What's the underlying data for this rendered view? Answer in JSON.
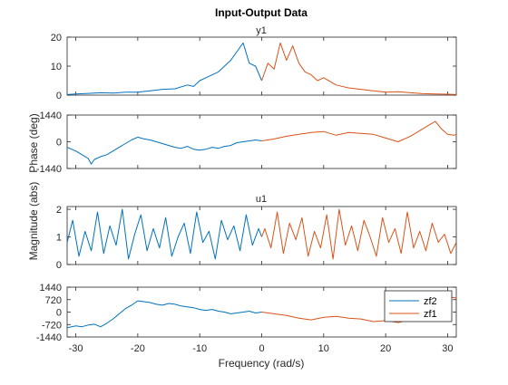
{
  "figure": {
    "title": "Input-Output Data",
    "xlabel": "Frequency  (rad/s)",
    "magnitude_label": "Magnitude (abs)",
    "phase_label": "Phase  (deg)",
    "xlim": [
      -31.4,
      31.4
    ],
    "xticks": [
      -30,
      -20,
      -10,
      0,
      10,
      20,
      30
    ],
    "xtick_labels": [
      "-30",
      "-20",
      "-10",
      "0",
      "10",
      "20",
      "30"
    ]
  },
  "chart_data": [
    {
      "type": "line",
      "channel": "y1",
      "quantity": "magnitude",
      "title": "y1",
      "ylim": [
        0,
        20
      ],
      "yticks": [
        0,
        10,
        20
      ],
      "ytick_labels": [
        "0",
        "10",
        "20"
      ],
      "series": [
        {
          "name": "zf2",
          "x": [
            -31.4,
            -30,
            -28,
            -26,
            -24,
            -22,
            -20,
            -18,
            -16,
            -14,
            -12,
            -11,
            -10,
            -9,
            -8,
            -7,
            -6,
            -5,
            -4,
            -3,
            -2,
            -1,
            0
          ],
          "values": [
            0.2,
            0.4,
            0.6,
            0.8,
            0.7,
            1.0,
            1.0,
            1.5,
            2.0,
            2.2,
            3.5,
            3.0,
            5.0,
            6.0,
            7.0,
            8.0,
            10.0,
            12.0,
            15.0,
            18.0,
            11.0,
            10.0,
            5.0
          ]
        },
        {
          "name": "zf1",
          "x": [
            0,
            1,
            2,
            3,
            4,
            5,
            6,
            7,
            8,
            9,
            10,
            12,
            14,
            16,
            18,
            20,
            22,
            24,
            26,
            28,
            30,
            31.4
          ],
          "values": [
            5.0,
            11.0,
            9.0,
            18.0,
            12.0,
            17.0,
            11.0,
            8.0,
            7.0,
            5.0,
            6.0,
            3.5,
            2.5,
            2.0,
            1.5,
            1.0,
            1.2,
            0.8,
            0.5,
            0.4,
            0.3,
            0.2
          ]
        }
      ]
    },
    {
      "type": "line",
      "channel": "y1",
      "quantity": "phase",
      "ylim": [
        -1440,
        1440
      ],
      "yticks": [
        -1440,
        0,
        1440
      ],
      "ytick_labels": [
        "-1440",
        "0",
        "1440"
      ],
      "series": [
        {
          "name": "zf2",
          "x": [
            -31.4,
            -30,
            -29,
            -28,
            -27.5,
            -27,
            -26,
            -25,
            -24,
            -23,
            -22,
            -21,
            -20,
            -19,
            -18,
            -17,
            -16,
            -15,
            -14,
            -13,
            -12,
            -11,
            -10,
            -9,
            -8,
            -7,
            -6,
            -5,
            -4,
            -3,
            -2,
            -1,
            0
          ],
          "values": [
            -300,
            -500,
            -700,
            -900,
            -1200,
            -950,
            -800,
            -700,
            -500,
            -300,
            -100,
            100,
            250,
            150,
            100,
            0,
            -100,
            -200,
            -300,
            -350,
            -250,
            -400,
            -450,
            -400,
            -300,
            -350,
            -250,
            -200,
            -50,
            0,
            50,
            100,
            50
          ]
        },
        {
          "name": "zf1",
          "x": [
            0,
            2,
            4,
            6,
            8,
            10,
            12,
            14,
            16,
            18,
            20,
            22,
            24,
            25,
            26,
            27,
            28,
            29,
            30,
            31,
            31.4
          ],
          "values": [
            50,
            150,
            300,
            400,
            500,
            550,
            350,
            500,
            450,
            400,
            200,
            0,
            300,
            500,
            700,
            900,
            1100,
            700,
            400,
            350,
            400
          ]
        }
      ]
    },
    {
      "type": "line",
      "channel": "u1",
      "quantity": "magnitude",
      "title": "u1",
      "ylim": [
        0,
        2.1
      ],
      "yticks": [
        0,
        1,
        2
      ],
      "ytick_labels": [
        "0",
        "1",
        "2"
      ],
      "series": [
        {
          "name": "zf2",
          "x": [
            -31.4,
            -30.5,
            -29.5,
            -28.5,
            -27.5,
            -26.5,
            -25.5,
            -24.5,
            -23.5,
            -22.5,
            -21.5,
            -20.5,
            -19.5,
            -18.5,
            -17.5,
            -16.5,
            -15.5,
            -14.5,
            -13.5,
            -12.5,
            -11.5,
            -10.5,
            -9.5,
            -8.5,
            -7.5,
            -6.5,
            -5.5,
            -4.5,
            -3.5,
            -2.5,
            -1.5,
            -0.5,
            0
          ],
          "values": [
            0.8,
            1.6,
            0.3,
            1.2,
            0.5,
            1.9,
            0.4,
            1.4,
            0.7,
            2.0,
            0.2,
            1.1,
            1.8,
            0.5,
            1.3,
            0.6,
            1.7,
            0.3,
            1.0,
            1.5,
            0.4,
            1.9,
            0.8,
            1.2,
            0.2,
            1.6,
            0.9,
            1.4,
            0.5,
            1.8,
            0.7,
            1.3,
            1.0
          ]
        },
        {
          "name": "zf1",
          "x": [
            0,
            0.5,
            1.5,
            2.5,
            3.5,
            4.5,
            5.5,
            6.5,
            7.5,
            8.5,
            9.5,
            10.5,
            11.5,
            12.5,
            13.5,
            14.5,
            15.5,
            16.5,
            17.5,
            18.5,
            19.5,
            20.5,
            21.5,
            22.5,
            23.5,
            24.5,
            25.5,
            26.5,
            27.5,
            28.5,
            29.5,
            30.5,
            31.4
          ],
          "values": [
            1.0,
            1.3,
            0.6,
            1.9,
            0.4,
            1.5,
            0.9,
            1.7,
            0.3,
            1.2,
            0.6,
            1.8,
            0.2,
            2.0,
            0.7,
            1.4,
            0.5,
            1.6,
            1.0,
            0.3,
            1.7,
            0.8,
            1.3,
            0.4,
            1.9,
            0.6,
            1.2,
            0.5,
            1.5,
            0.8,
            1.1,
            0.4,
            0.8
          ]
        }
      ]
    },
    {
      "type": "line",
      "channel": "u1",
      "quantity": "phase",
      "ylim": [
        -1440,
        1440
      ],
      "yticks": [
        -1440,
        -720,
        0,
        720,
        1440
      ],
      "ytick_labels": [
        "-1440",
        "-720",
        "0",
        "720",
        "1440"
      ],
      "legend": {
        "entries": [
          "zf2",
          "zf1"
        ],
        "placement": "top-right"
      },
      "series": [
        {
          "name": "zf2",
          "x": [
            -31.4,
            -30,
            -29,
            -28,
            -27,
            -26,
            -25,
            -24,
            -23,
            -22,
            -21,
            -20,
            -19,
            -18,
            -17,
            -16,
            -15,
            -14,
            -13,
            -12,
            -11,
            -10,
            -9,
            -8,
            -7,
            -6,
            -5,
            -4,
            -3,
            -2,
            -1,
            0
          ],
          "values": [
            -900,
            -800,
            -850,
            -750,
            -700,
            -850,
            -650,
            -400,
            -100,
            200,
            400,
            650,
            600,
            550,
            450,
            400,
            500,
            450,
            350,
            300,
            250,
            150,
            100,
            150,
            50,
            0,
            -100,
            -50,
            0,
            50,
            -50,
            0
          ]
        },
        {
          "name": "zf1",
          "x": [
            0,
            2,
            4,
            6,
            8,
            10,
            12,
            14,
            16,
            18,
            20,
            22,
            24,
            25,
            26,
            27,
            28,
            29,
            30,
            31,
            31.4
          ],
          "values": [
            0,
            -100,
            -200,
            -350,
            -450,
            -300,
            -250,
            -350,
            -400,
            -550,
            -500,
            -600,
            -450,
            -250,
            0,
            300,
            550,
            700,
            800,
            850,
            800
          ]
        }
      ]
    }
  ],
  "colors": {
    "zf2": "#0072bd",
    "zf1": "#d95319",
    "axes": "#262626",
    "frame": "#262626",
    "background": "#ffffff"
  }
}
